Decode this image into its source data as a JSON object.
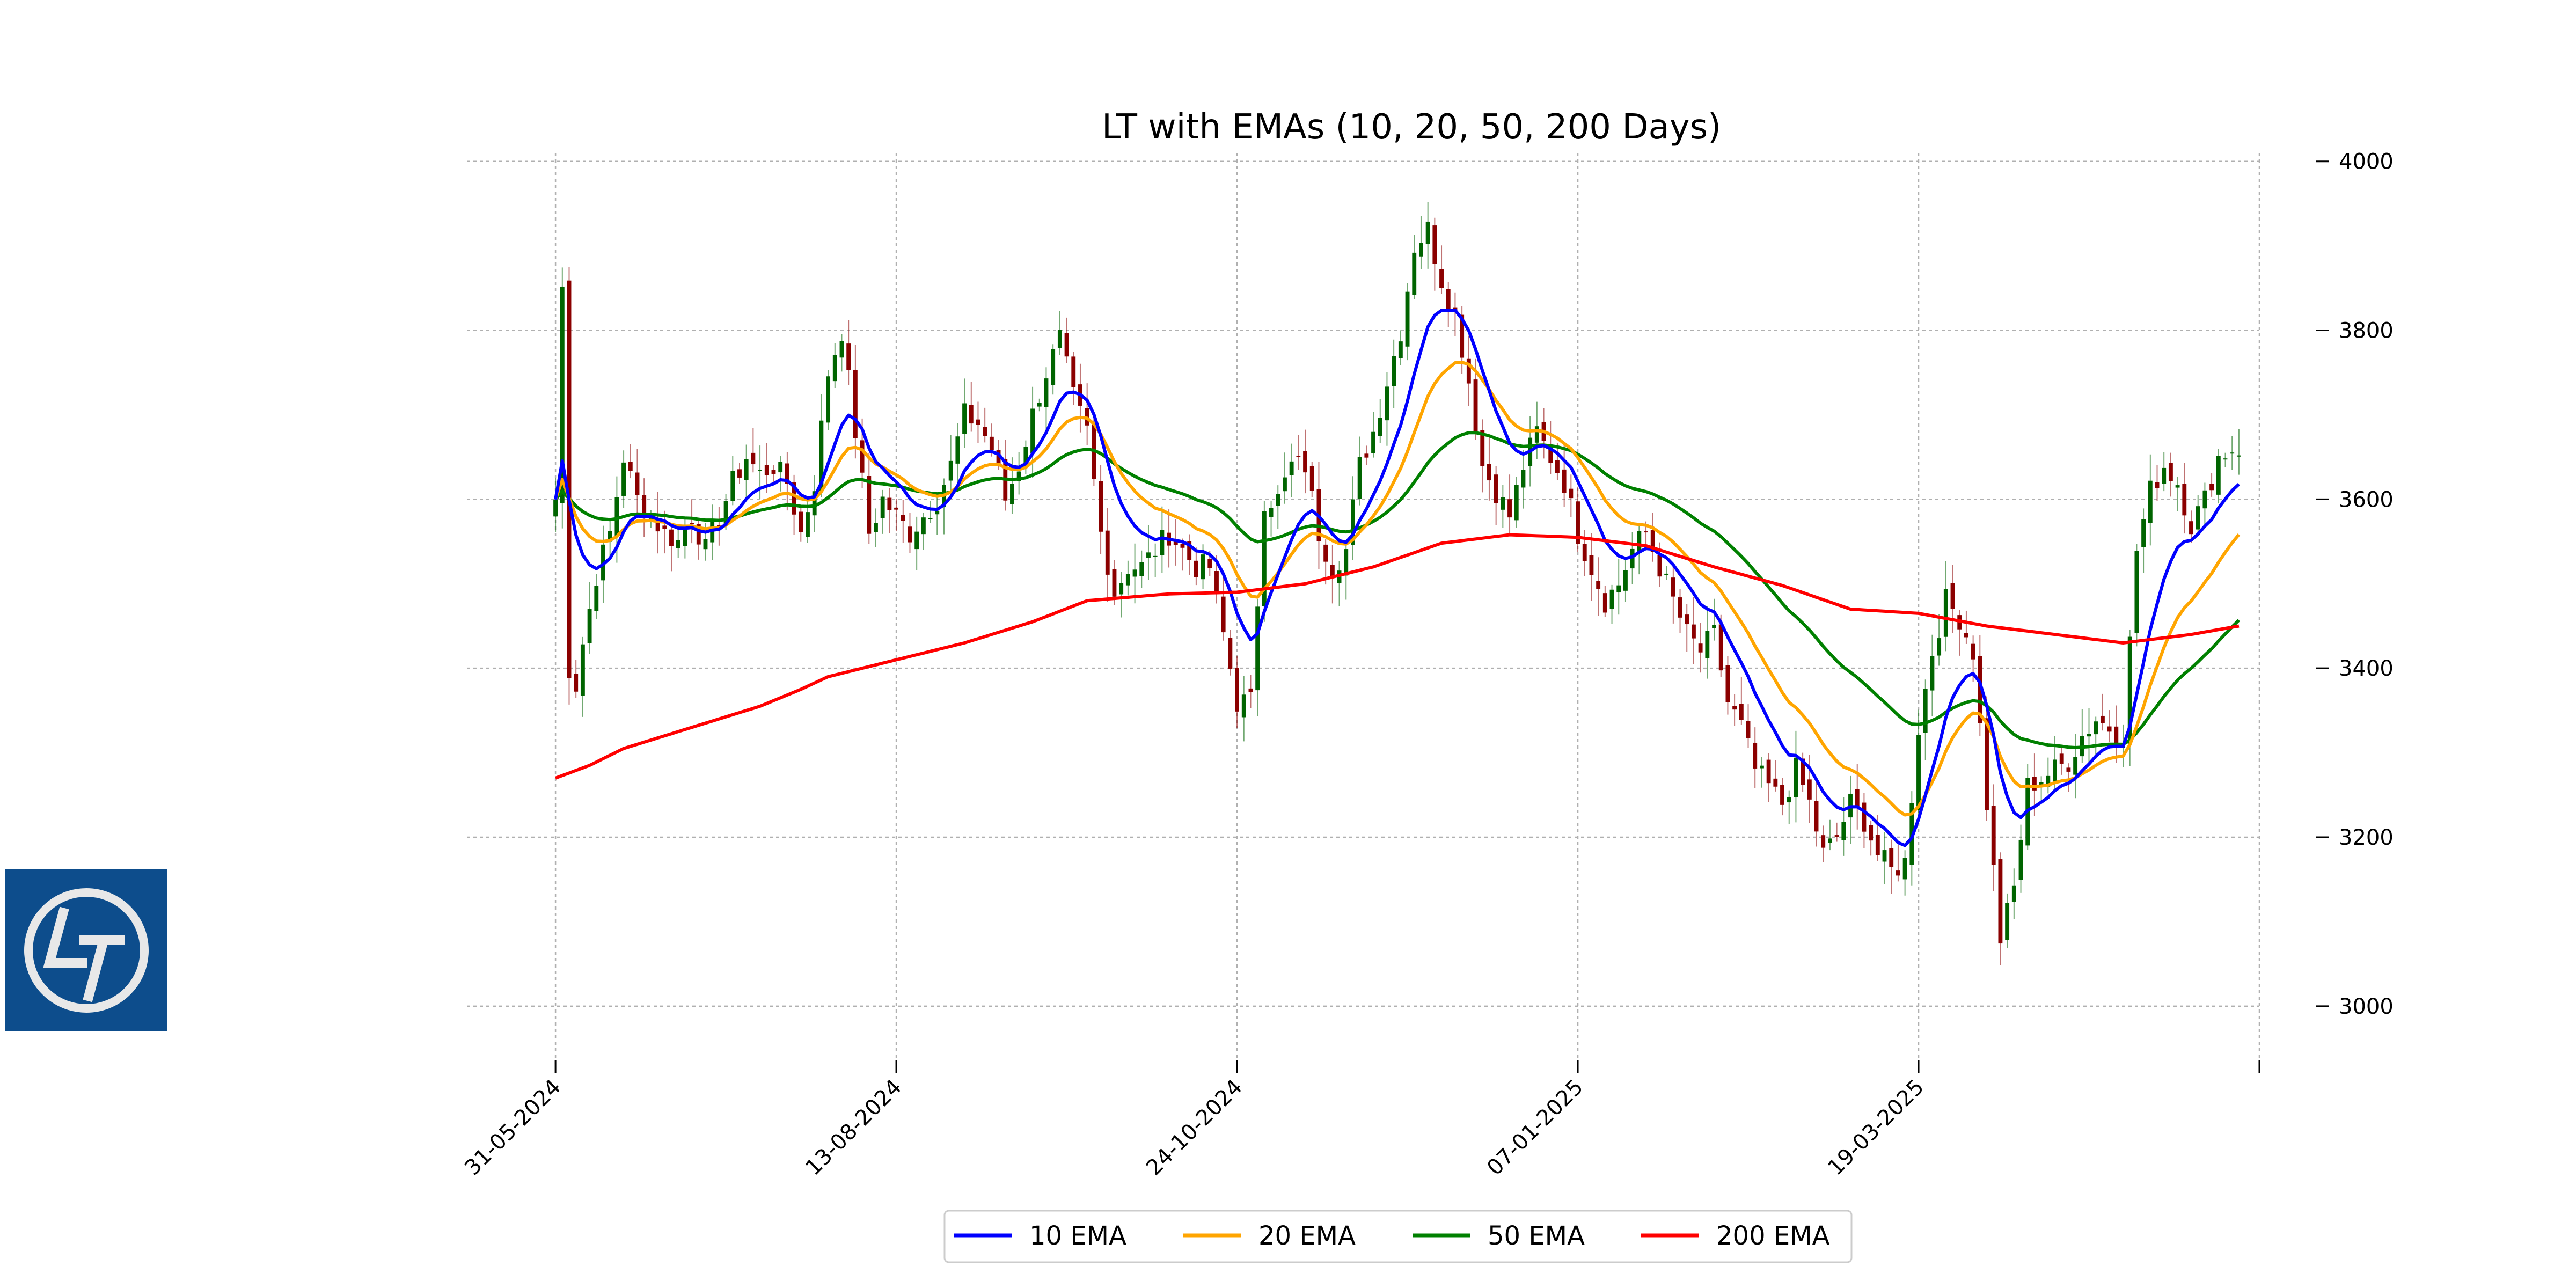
{
  "chart_data": {
    "type": "candlestick",
    "title": "LT with EMAs (10, 20, 50, 200 Days)",
    "ylim": [
      2930,
      4010
    ],
    "y_ticks": [
      3000,
      3200,
      3400,
      3600,
      3800,
      4000
    ],
    "x_tick_labels": [
      "31-05-2024",
      "13-08-2024",
      "24-10-2024",
      "07-01-2025",
      "19-03-2025"
    ],
    "x_tick_positions": [
      0,
      50,
      100,
      150,
      200
    ],
    "x_range": [
      -13,
      250
    ],
    "grid": true,
    "legend": "bottom-center",
    "colors": {
      "up": "#006400",
      "down": "#8b0000",
      "ema10": "#0000ff",
      "ema20": "#ffa500",
      "ema50": "#008000",
      "ema200": "#ff0000",
      "grid": "#b0b0b0"
    },
    "close_anchors": [
      [
        0,
        3600
      ],
      [
        1,
        3850
      ],
      [
        2,
        3400
      ],
      [
        3,
        3380
      ],
      [
        4,
        3430
      ],
      [
        6,
        3510
      ],
      [
        8,
        3560
      ],
      [
        10,
        3650
      ],
      [
        12,
        3600
      ],
      [
        14,
        3580
      ],
      [
        16,
        3560
      ],
      [
        18,
        3550
      ],
      [
        20,
        3580
      ],
      [
        22,
        3540
      ],
      [
        24,
        3580
      ],
      [
        26,
        3620
      ],
      [
        28,
        3650
      ],
      [
        30,
        3630
      ],
      [
        32,
        3640
      ],
      [
        34,
        3620
      ],
      [
        36,
        3560
      ],
      [
        38,
        3620
      ],
      [
        40,
        3750
      ],
      [
        42,
        3800
      ],
      [
        44,
        3680
      ],
      [
        46,
        3560
      ],
      [
        48,
        3600
      ],
      [
        50,
        3580
      ],
      [
        52,
        3560
      ],
      [
        54,
        3580
      ],
      [
        56,
        3600
      ],
      [
        58,
        3640
      ],
      [
        60,
        3700
      ],
      [
        62,
        3690
      ],
      [
        64,
        3660
      ],
      [
        66,
        3600
      ],
      [
        68,
        3640
      ],
      [
        70,
        3700
      ],
      [
        72,
        3750
      ],
      [
        74,
        3790
      ],
      [
        76,
        3720
      ],
      [
        78,
        3680
      ],
      [
        80,
        3560
      ],
      [
        82,
        3490
      ],
      [
        84,
        3520
      ],
      [
        86,
        3520
      ],
      [
        88,
        3540
      ],
      [
        90,
        3560
      ],
      [
        92,
        3540
      ],
      [
        94,
        3520
      ],
      [
        96,
        3520
      ],
      [
        98,
        3440
      ],
      [
        100,
        3360
      ],
      [
        102,
        3360
      ],
      [
        104,
        3600
      ],
      [
        106,
        3600
      ],
      [
        108,
        3640
      ],
      [
        110,
        3640
      ],
      [
        112,
        3560
      ],
      [
        114,
        3520
      ],
      [
        116,
        3540
      ],
      [
        118,
        3640
      ],
      [
        120,
        3680
      ],
      [
        122,
        3740
      ],
      [
        124,
        3800
      ],
      [
        126,
        3900
      ],
      [
        128,
        3920
      ],
      [
        130,
        3860
      ],
      [
        132,
        3820
      ],
      [
        134,
        3740
      ],
      [
        136,
        3640
      ],
      [
        138,
        3610
      ],
      [
        140,
        3580
      ],
      [
        142,
        3640
      ],
      [
        144,
        3680
      ],
      [
        146,
        3650
      ],
      [
        148,
        3620
      ],
      [
        150,
        3560
      ],
      [
        152,
        3520
      ],
      [
        154,
        3480
      ],
      [
        156,
        3500
      ],
      [
        158,
        3540
      ],
      [
        160,
        3560
      ],
      [
        162,
        3520
      ],
      [
        164,
        3480
      ],
      [
        166,
        3440
      ],
      [
        168,
        3420
      ],
      [
        170,
        3440
      ],
      [
        172,
        3360
      ],
      [
        174,
        3330
      ],
      [
        176,
        3280
      ],
      [
        178,
        3260
      ],
      [
        180,
        3240
      ],
      [
        182,
        3280
      ],
      [
        184,
        3240
      ],
      [
        186,
        3180
      ],
      [
        188,
        3200
      ],
      [
        190,
        3240
      ],
      [
        192,
        3220
      ],
      [
        194,
        3180
      ],
      [
        196,
        3160
      ],
      [
        198,
        3170
      ],
      [
        200,
        3330
      ],
      [
        202,
        3420
      ],
      [
        204,
        3480
      ],
      [
        206,
        3460
      ],
      [
        208,
        3420
      ],
      [
        210,
        3240
      ],
      [
        212,
        3080
      ],
      [
        214,
        3140
      ],
      [
        216,
        3260
      ],
      [
        218,
        3270
      ],
      [
        220,
        3280
      ],
      [
        222,
        3290
      ],
      [
        224,
        3320
      ],
      [
        226,
        3340
      ],
      [
        228,
        3330
      ],
      [
        230,
        3320
      ],
      [
        232,
        3540
      ],
      [
        234,
        3610
      ],
      [
        236,
        3640
      ],
      [
        238,
        3620
      ],
      [
        240,
        3570
      ],
      [
        242,
        3600
      ],
      [
        244,
        3650
      ],
      [
        246,
        3660
      ],
      [
        247,
        3660
      ]
    ],
    "ema200_anchors": [
      [
        0,
        3270
      ],
      [
        5,
        3285
      ],
      [
        10,
        3305
      ],
      [
        20,
        3330
      ],
      [
        30,
        3355
      ],
      [
        36,
        3375
      ],
      [
        40,
        3390
      ],
      [
        50,
        3410
      ],
      [
        60,
        3430
      ],
      [
        70,
        3455
      ],
      [
        78,
        3480
      ],
      [
        90,
        3488
      ],
      [
        100,
        3490
      ],
      [
        110,
        3500
      ],
      [
        120,
        3520
      ],
      [
        130,
        3548
      ],
      [
        140,
        3558
      ],
      [
        150,
        3555
      ],
      [
        160,
        3545
      ],
      [
        170,
        3520
      ],
      [
        180,
        3498
      ],
      [
        190,
        3470
      ],
      [
        200,
        3465
      ],
      [
        210,
        3450
      ],
      [
        220,
        3440
      ],
      [
        230,
        3430
      ],
      [
        240,
        3440
      ],
      [
        247,
        3450
      ]
    ],
    "series": [
      {
        "name": "10 EMA",
        "period": 10
      },
      {
        "name": "20 EMA",
        "period": 20
      },
      {
        "name": "50 EMA",
        "period": 50
      },
      {
        "name": "200 EMA",
        "period": 200
      }
    ]
  }
}
